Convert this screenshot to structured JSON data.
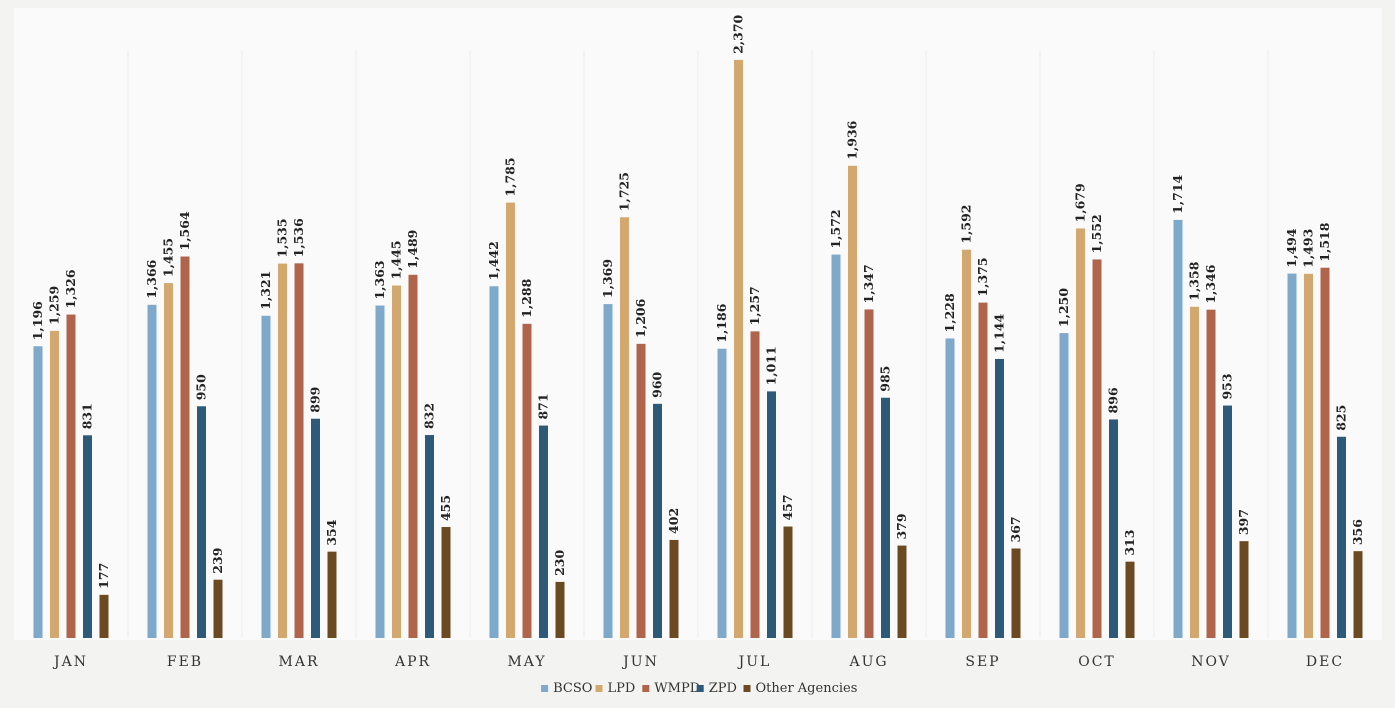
{
  "chart_data": {
    "type": "bar",
    "title": "",
    "xlabel": "",
    "ylabel": "",
    "ylim": [
      0,
      2550
    ],
    "grid": false,
    "legend_position": "bottom",
    "categories": [
      "JAN",
      "FEB",
      "MAR",
      "APR",
      "MAY",
      "JUN",
      "JUL",
      "AUG",
      "SEP",
      "OCT",
      "NOV",
      "DEC"
    ],
    "series": [
      {
        "name": "BCSO",
        "color": "#7ea9cb",
        "values": [
          1196,
          1366,
          1321,
          1363,
          1442,
          1369,
          1186,
          1572,
          1228,
          1250,
          1714,
          1494
        ],
        "labels": [
          "1,196",
          "1,366",
          "1,321",
          "1,363",
          "1,442",
          "1,369",
          "1,186",
          "1,572",
          "1,228",
          "1,250",
          "1,714",
          "1,494"
        ]
      },
      {
        "name": "LPD",
        "color": "#d3a86f",
        "values": [
          1259,
          1455,
          1535,
          1445,
          1785,
          1725,
          2370,
          1936,
          1592,
          1679,
          1358,
          1493
        ],
        "labels": [
          "1,259",
          "1,455",
          "1,535",
          "1,445",
          "1,785",
          "1,725",
          "2,370",
          "1,936",
          "1,592",
          "1,679",
          "1,358",
          "1,493"
        ]
      },
      {
        "name": "WMPD",
        "color": "#b0644c",
        "values": [
          1326,
          1564,
          1536,
          1489,
          1288,
          1206,
          1257,
          1347,
          1375,
          1552,
          1346,
          1518
        ],
        "labels": [
          "1,326",
          "1,564",
          "1,536",
          "1,489",
          "1,288",
          "1,206",
          "1,257",
          "1,347",
          "1,375",
          "1,552",
          "1,346",
          "1,518"
        ]
      },
      {
        "name": "ZPD",
        "color": "#2e5a7a",
        "values": [
          831,
          950,
          899,
          832,
          871,
          960,
          1011,
          985,
          1144,
          896,
          953,
          825
        ],
        "labels": [
          "831",
          "950",
          "899",
          "832",
          "871",
          "960",
          "1,011",
          "985",
          "1,144",
          "896",
          "953",
          "825"
        ]
      },
      {
        "name": "Other Agencies",
        "color": "#6b4a22",
        "values": [
          177,
          239,
          354,
          455,
          230,
          402,
          457,
          379,
          367,
          313,
          397,
          356
        ],
        "labels": [
          "177",
          "239",
          "354",
          "455",
          "230",
          "402",
          "457",
          "379",
          "367",
          "313",
          "397",
          "356"
        ]
      }
    ]
  }
}
